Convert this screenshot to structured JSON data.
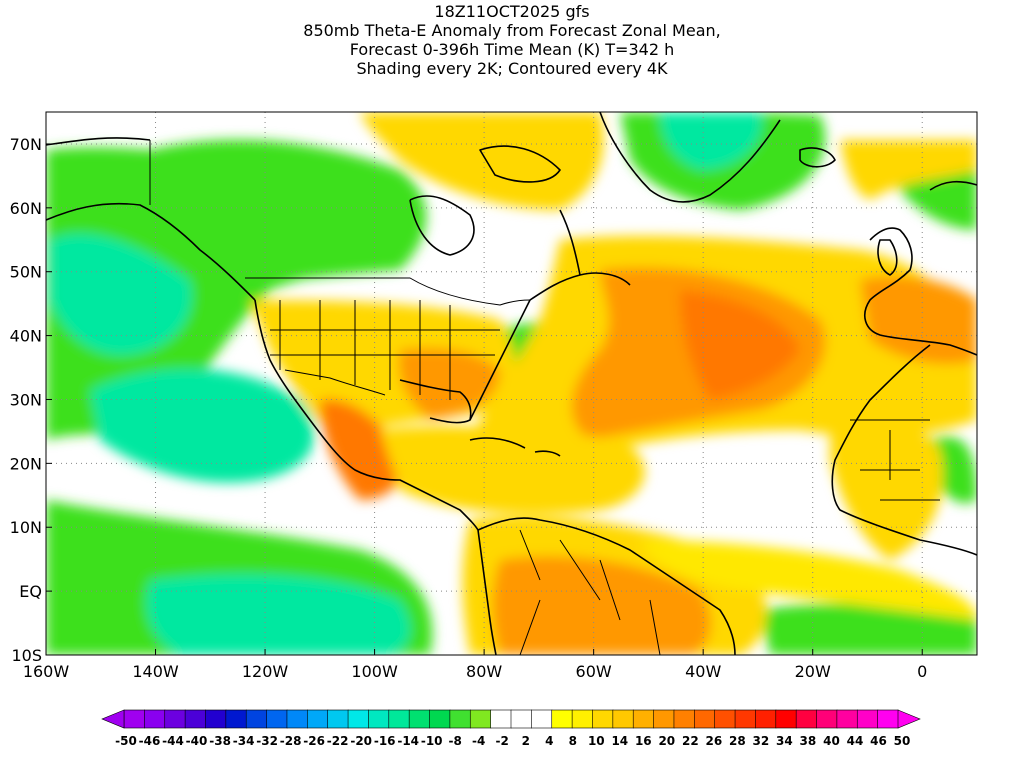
{
  "title": {
    "line1": "18Z11OCT2025 gfs",
    "line2": "850mb Theta-E Anomaly from Forecast Zonal Mean,",
    "line3": "Forecast 0-396h Time Mean (K) T=342 h",
    "line4": "Shading every 2K; Contoured every 4K"
  },
  "map": {
    "lon_range": [
      -160,
      10
    ],
    "lat_range": [
      -10,
      75
    ],
    "lat_ticks": [
      {
        "lat": 70,
        "label": "70N"
      },
      {
        "lat": 60,
        "label": "60N"
      },
      {
        "lat": 50,
        "label": "50N"
      },
      {
        "lat": 40,
        "label": "40N"
      },
      {
        "lat": 30,
        "label": "30N"
      },
      {
        "lat": 20,
        "label": "20N"
      },
      {
        "lat": 10,
        "label": "10N"
      },
      {
        "lat": 0,
        "label": "EQ"
      },
      {
        "lat": -10,
        "label": "10S"
      }
    ],
    "lon_ticks": [
      {
        "lon": -160,
        "label": "160W"
      },
      {
        "lon": -140,
        "label": "140W"
      },
      {
        "lon": -120,
        "label": "120W"
      },
      {
        "lon": -100,
        "label": "100W"
      },
      {
        "lon": -80,
        "label": "80W"
      },
      {
        "lon": -60,
        "label": "60W"
      },
      {
        "lon": -40,
        "label": "40W"
      },
      {
        "lon": -20,
        "label": "20W"
      },
      {
        "lon": 0,
        "label": "0"
      }
    ],
    "grid_lines": "dotted",
    "background_field": "white"
  },
  "colorbar": {
    "labels": [
      "-50",
      "-46",
      "-44",
      "-40",
      "-38",
      "-34",
      "-32",
      "-28",
      "-26",
      "-22",
      "-20",
      "-16",
      "-14",
      "-10",
      "-8",
      "-4",
      "-2",
      "2",
      "4",
      "8",
      "10",
      "14",
      "16",
      "20",
      "22",
      "26",
      "28",
      "32",
      "34",
      "38",
      "40",
      "44",
      "46",
      "50"
    ],
    "colors": [
      "#a000f0",
      "#8a00f0",
      "#6c00e0",
      "#4b00d8",
      "#2200d0",
      "#0018d0",
      "#0044e0",
      "#0066f0",
      "#0088f8",
      "#00a8f8",
      "#00c8f0",
      "#00e8e8",
      "#00e8c0",
      "#00e89a",
      "#00e070",
      "#00d850",
      "#40e030",
      "#80e820",
      "#ffffff",
      "#ffffff",
      "#ffffff",
      "#ffff00",
      "#fff000",
      "#ffd800",
      "#ffc800",
      "#ffb000",
      "#ff9800",
      "#ff8000",
      "#ff6800",
      "#ff5000",
      "#ff3800",
      "#ff2000",
      "#ff0000",
      "#ff0040",
      "#ff0078",
      "#ff00a0",
      "#ff00c8",
      "#ff00f0"
    ]
  }
}
